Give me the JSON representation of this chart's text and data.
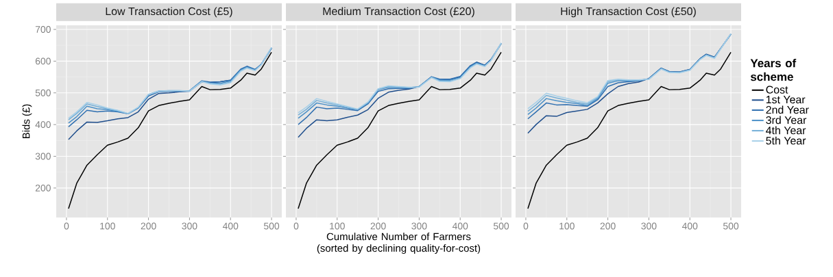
{
  "chart_data": [
    {
      "type": "line",
      "title": "Low Transaction Cost (£5)",
      "ylabel": "Bids (£)",
      "x": [
        5,
        25,
        50,
        75,
        100,
        125,
        150,
        175,
        200,
        225,
        250,
        275,
        300,
        330,
        350,
        375,
        400,
        425,
        440,
        460,
        475,
        500
      ],
      "xlim": [
        -25,
        525
      ],
      "ylim": [
        107,
        713
      ],
      "xticks": [
        0,
        100,
        200,
        300,
        400,
        500
      ],
      "yticks": [
        200,
        300,
        400,
        500,
        600,
        700
      ],
      "grid": true,
      "series": [
        {
          "color": "#000000",
          "values": [
            135,
            215,
            272,
            305,
            335,
            345,
            357,
            390,
            443,
            460,
            467,
            473,
            478,
            520,
            510,
            511,
            515,
            540,
            562,
            556,
            575,
            628
          ]
        },
        {
          "color": "#1f4e8c",
          "values": [
            353,
            380,
            408,
            407,
            412,
            418,
            422,
            440,
            480,
            498,
            500,
            503,
            505,
            535,
            532,
            535,
            540,
            572,
            582,
            572,
            590,
            640
          ]
        },
        {
          "color": "#2f6fb0",
          "values": [
            393,
            415,
            445,
            440,
            443,
            440,
            434,
            452,
            490,
            503,
            505,
            506,
            507,
            538,
            534,
            535,
            540,
            575,
            584,
            574,
            590,
            641
          ]
        },
        {
          "color": "#4a90c8",
          "values": [
            405,
            425,
            458,
            450,
            447,
            442,
            434,
            453,
            494,
            505,
            506,
            506,
            506,
            537,
            531,
            530,
            537,
            572,
            581,
            572,
            589,
            642
          ]
        },
        {
          "color": "#74afd8",
          "values": [
            415,
            435,
            465,
            457,
            450,
            444,
            435,
            454,
            495,
            506,
            507,
            507,
            506,
            536,
            530,
            527,
            534,
            570,
            580,
            571,
            589,
            643
          ]
        },
        {
          "color": "#a6cfe8",
          "values": [
            420,
            440,
            470,
            462,
            452,
            445,
            435,
            455,
            495,
            505,
            507,
            507,
            505,
            535,
            528,
            525,
            532,
            568,
            578,
            570,
            588,
            643
          ]
        }
      ]
    },
    {
      "type": "line",
      "title": "Medium Transaction Cost (£20)",
      "xlabel": "Cumulative Number of Farmers (sorted by declining quality-for-cost)",
      "x": [
        5,
        25,
        50,
        75,
        100,
        125,
        150,
        175,
        200,
        225,
        250,
        275,
        300,
        330,
        350,
        375,
        400,
        425,
        440,
        460,
        475,
        500
      ],
      "xlim": [
        -25,
        525
      ],
      "ylim": [
        107,
        713
      ],
      "xticks": [
        0,
        100,
        200,
        300,
        400,
        500
      ],
      "yticks": [
        200,
        300,
        400,
        500,
        600,
        700
      ],
      "grid": true,
      "tick_labels": "x",
      "series": [
        {
          "color": "#000000",
          "values": [
            135,
            215,
            272,
            305,
            335,
            345,
            357,
            390,
            443,
            460,
            467,
            473,
            478,
            520,
            510,
            511,
            515,
            540,
            562,
            556,
            575,
            628
          ]
        },
        {
          "color": "#1f4e8c",
          "values": [
            360,
            388,
            415,
            412,
            415,
            423,
            430,
            447,
            483,
            502,
            508,
            512,
            520,
            550,
            540,
            542,
            550,
            585,
            597,
            587,
            605,
            655
          ]
        },
        {
          "color": "#2f6fb0",
          "values": [
            400,
            422,
            455,
            450,
            452,
            448,
            444,
            465,
            505,
            513,
            514,
            514,
            520,
            551,
            543,
            543,
            552,
            586,
            596,
            587,
            605,
            656
          ]
        },
        {
          "color": "#4a90c8",
          "values": [
            420,
            440,
            468,
            462,
            458,
            452,
            447,
            468,
            510,
            518,
            517,
            516,
            520,
            550,
            540,
            540,
            548,
            582,
            594,
            585,
            603,
            656
          ]
        },
        {
          "color": "#74afd8",
          "values": [
            430,
            448,
            476,
            468,
            462,
            455,
            448,
            470,
            512,
            520,
            519,
            517,
            519,
            549,
            538,
            537,
            546,
            580,
            592,
            584,
            602,
            657
          ]
        },
        {
          "color": "#a6cfe8",
          "values": [
            437,
            455,
            482,
            473,
            465,
            457,
            449,
            471,
            513,
            522,
            520,
            518,
            518,
            548,
            536,
            535,
            545,
            579,
            591,
            583,
            602,
            657
          ]
        }
      ]
    },
    {
      "type": "line",
      "title": "High Transaction Cost (£50)",
      "legend": "right",
      "legend_title": "Years of scheme",
      "x": [
        5,
        25,
        50,
        75,
        100,
        125,
        150,
        175,
        200,
        225,
        250,
        275,
        300,
        330,
        350,
        375,
        400,
        425,
        440,
        460,
        475,
        500
      ],
      "xlim": [
        -25,
        525
      ],
      "ylim": [
        107,
        713
      ],
      "xticks": [
        0,
        100,
        200,
        300,
        400,
        500
      ],
      "yticks": [
        200,
        300,
        400,
        500,
        600,
        700
      ],
      "grid": true,
      "tick_labels": "x",
      "series": [
        {
          "name": "Cost",
          "color": "#000000",
          "values": [
            135,
            215,
            272,
            305,
            335,
            345,
            357,
            390,
            443,
            460,
            467,
            473,
            478,
            520,
            510,
            511,
            515,
            540,
            562,
            556,
            575,
            628
          ]
        },
        {
          "name": "1st Year",
          "color": "#1f4e8c",
          "values": [
            373,
            400,
            428,
            426,
            438,
            443,
            448,
            468,
            497,
            520,
            529,
            534,
            545,
            578,
            567,
            566,
            574,
            608,
            622,
            613,
            640,
            685
          ]
        },
        {
          "name": "2nd Year",
          "color": "#2f6fb0",
          "values": [
            418,
            440,
            468,
            462,
            463,
            460,
            458,
            478,
            520,
            532,
            535,
            538,
            545,
            578,
            567,
            566,
            574,
            608,
            621,
            612,
            640,
            685
          ]
        },
        {
          "name": "3rd Year",
          "color": "#4a90c8",
          "values": [
            432,
            452,
            482,
            475,
            470,
            466,
            460,
            482,
            530,
            538,
            538,
            539,
            544,
            577,
            566,
            565,
            573,
            607,
            620,
            611,
            639,
            686
          ]
        },
        {
          "name": "4th Year",
          "color": "#74afd8",
          "values": [
            442,
            462,
            492,
            484,
            477,
            470,
            465,
            485,
            535,
            541,
            540,
            540,
            543,
            576,
            565,
            564,
            572,
            606,
            619,
            610,
            639,
            686
          ]
        },
        {
          "name": "5th Year",
          "color": "#a6cfe8",
          "values": [
            450,
            470,
            499,
            490,
            483,
            475,
            469,
            488,
            539,
            543,
            541,
            541,
            543,
            575,
            564,
            563,
            571,
            605,
            618,
            609,
            638,
            687
          ]
        }
      ]
    }
  ]
}
